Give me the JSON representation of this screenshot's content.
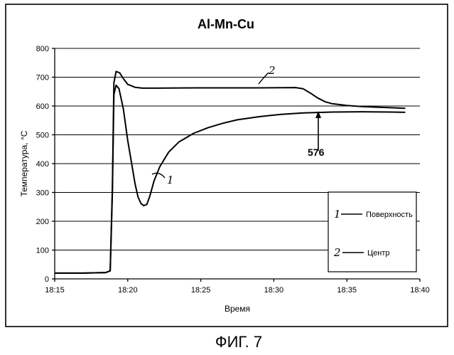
{
  "chart_data": {
    "type": "line",
    "title": "Al-Mn-Cu",
    "xlabel": "Время",
    "ylabel": "Температура, °C",
    "x_ticks": [
      "18:15",
      "18:20",
      "18:25",
      "18:30",
      "18:35",
      "18:40"
    ],
    "xlim_minutes": [
      0,
      25
    ],
    "ylim": [
      0,
      800
    ],
    "y_ticks": [
      0,
      100,
      200,
      300,
      400,
      500,
      600,
      700,
      800
    ],
    "grid": "horizontal",
    "legend_position": "bottom-right",
    "series": [
      {
        "name": "Поверхность",
        "marker": "1",
        "x_minutes": [
          0,
          2,
          3.5,
          3.8,
          3.95,
          4.05,
          4.2,
          4.4,
          4.7,
          5,
          5.3,
          5.5,
          5.7,
          5.9,
          6.1,
          6.3,
          6.5,
          6.8,
          7.2,
          7.8,
          8.5,
          9.5,
          10.5,
          11.5,
          12.5,
          14,
          15.5,
          17,
          19,
          21,
          23,
          24
        ],
        "values": [
          20,
          20,
          22,
          28,
          300,
          640,
          672,
          660,
          590,
          480,
          390,
          330,
          285,
          262,
          254,
          258,
          285,
          340,
          390,
          440,
          475,
          505,
          525,
          540,
          552,
          563,
          571,
          576,
          579,
          580,
          579,
          578
        ]
      },
      {
        "name": "Центр",
        "marker": "2",
        "x_minutes": [
          0,
          2,
          3.5,
          3.8,
          3.95,
          4.05,
          4.2,
          4.45,
          4.7,
          5,
          5.5,
          6,
          7,
          10,
          14,
          16.5,
          17,
          17.5,
          18,
          18.5,
          19,
          19.5,
          20,
          21,
          22,
          23,
          24
        ],
        "values": [
          20,
          20,
          22,
          28,
          320,
          680,
          720,
          715,
          695,
          675,
          665,
          662,
          662,
          663,
          663,
          664,
          660,
          645,
          628,
          615,
          608,
          605,
          602,
          598,
          596,
          594,
          592
        ]
      }
    ],
    "annotations": [
      {
        "text": "576",
        "x_minutes": 18.7,
        "value": 576
      },
      {
        "text": "1",
        "series": "Поверхность"
      },
      {
        "text": "2",
        "series": "Центр"
      }
    ]
  },
  "caption": "ФИГ. 7"
}
